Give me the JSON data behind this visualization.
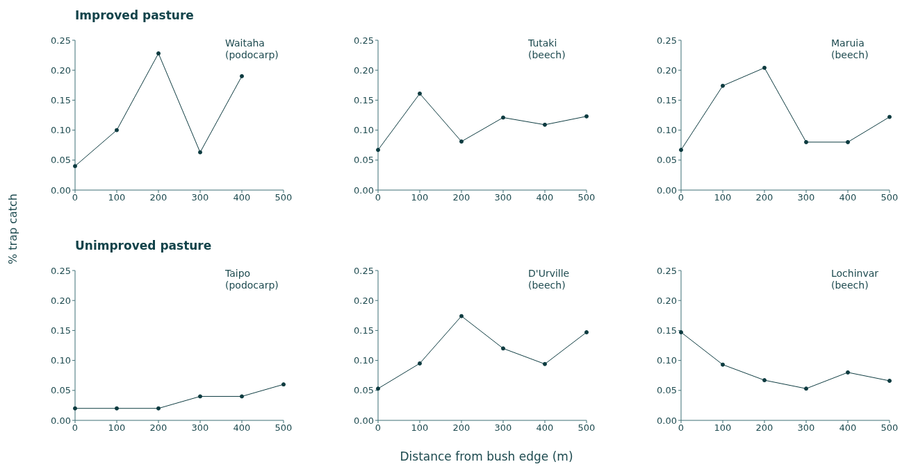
{
  "chart_data": [
    {
      "type": "line",
      "title": "Improved pasture",
      "subtitle": "Waitaha (podocarp)",
      "ylabel": "% trap catch",
      "x": [
        0,
        100,
        200,
        300,
        400
      ],
      "values": [
        0.04,
        0.1,
        0.228,
        0.063,
        0.19
      ],
      "color": "#0d3b40",
      "marker": "circle",
      "xlim": [
        0,
        500
      ],
      "xticks": [
        0,
        100,
        200,
        300,
        400,
        500
      ],
      "ylim": [
        0,
        0.25
      ],
      "yticks": [
        {
          "value": 0,
          "label": "0.00"
        },
        {
          "value": 0.05,
          "label": "0.05"
        },
        {
          "value": 0.1,
          "label": "0.10"
        },
        {
          "value": 0.15,
          "label": "0.15"
        },
        {
          "value": 0.2,
          "label": "0.20"
        },
        {
          "value": 0.25,
          "label": "0.25"
        }
      ]
    },
    {
      "type": "line",
      "subtitle": "Tutaki (beech)",
      "x": [
        0,
        100,
        200,
        300,
        400,
        500
      ],
      "values": [
        0.067,
        0.161,
        0.081,
        0.121,
        0.109,
        0.123
      ],
      "color": "#0d3b40",
      "marker": "circle",
      "xlim": [
        0,
        500
      ],
      "xticks": [
        0,
        100,
        200,
        300,
        400,
        500
      ],
      "ylim": [
        0,
        0.25
      ],
      "yticks": [
        {
          "value": 0,
          "label": "0.00"
        },
        {
          "value": 0.05,
          "label": "0.05"
        },
        {
          "value": 0.1,
          "label": "0.10"
        },
        {
          "value": 0.15,
          "label": "0.15"
        },
        {
          "value": 0.2,
          "label": "0.20"
        },
        {
          "value": 0.25,
          "label": "0.25"
        }
      ]
    },
    {
      "type": "line",
      "subtitle": "Maruia (beech)",
      "x": [
        0,
        100,
        200,
        300,
        400,
        500
      ],
      "values": [
        0.067,
        0.174,
        0.204,
        0.08,
        0.08,
        0.122
      ],
      "color": "#0d3b40",
      "marker": "circle",
      "xlim": [
        0,
        500
      ],
      "xticks": [
        0,
        100,
        200,
        300,
        400,
        500
      ],
      "ylim": [
        0,
        0.25
      ],
      "yticks": [
        {
          "value": 0,
          "label": "0.00"
        },
        {
          "value": 0.05,
          "label": "0.05"
        },
        {
          "value": 0.1,
          "label": "0.10"
        },
        {
          "value": 0.15,
          "label": "0.15"
        },
        {
          "value": 0.2,
          "label": "0.20"
        },
        {
          "value": 0.25,
          "label": "0.25"
        }
      ]
    },
    {
      "type": "line",
      "title": "Unimproved pasture",
      "subtitle": "Taipo (podocarp)",
      "x": [
        0,
        100,
        200,
        300,
        400,
        500
      ],
      "values": [
        0.02,
        0.02,
        0.02,
        0.04,
        0.04,
        0.06
      ],
      "color": "#0d3b40",
      "marker": "circle",
      "xlim": [
        0,
        500
      ],
      "xticks": [
        0,
        100,
        200,
        300,
        400,
        500
      ],
      "ylim": [
        0,
        0.25
      ],
      "yticks": [
        {
          "value": 0,
          "label": "0.00"
        },
        {
          "value": 0.05,
          "label": "0.05"
        },
        {
          "value": 0.1,
          "label": "0.10"
        },
        {
          "value": 0.15,
          "label": "0.15"
        },
        {
          "value": 0.2,
          "label": "0.20"
        },
        {
          "value": 0.25,
          "label": "0.25"
        }
      ]
    },
    {
      "type": "line",
      "subtitle": "D'Urville (beech)",
      "xlabel": "Distance from bush edge (m)",
      "x": [
        0,
        100,
        200,
        300,
        400,
        500
      ],
      "values": [
        0.053,
        0.095,
        0.174,
        0.12,
        0.094,
        0.147
      ],
      "color": "#0d3b40",
      "marker": "circle",
      "xlim": [
        0,
        500
      ],
      "xticks": [
        0,
        100,
        200,
        300,
        400,
        500
      ],
      "ylim": [
        0,
        0.25
      ],
      "yticks": [
        {
          "value": 0,
          "label": "0.00"
        },
        {
          "value": 0.05,
          "label": "0.05"
        },
        {
          "value": 0.1,
          "label": "0.10"
        },
        {
          "value": 0.15,
          "label": "0.15"
        },
        {
          "value": 0.2,
          "label": "0.20"
        },
        {
          "value": 0.25,
          "label": "0.25"
        }
      ]
    },
    {
      "type": "line",
      "subtitle": "Lochinvar (beech)",
      "x": [
        0,
        100,
        200,
        300,
        400,
        500
      ],
      "values": [
        0.147,
        0.093,
        0.067,
        0.053,
        0.08,
        0.066
      ],
      "color": "#0d3b40",
      "marker": "circle",
      "xlim": [
        0,
        500
      ],
      "xticks": [
        0,
        100,
        200,
        300,
        400,
        500
      ],
      "ylim": [
        0,
        0.25
      ],
      "yticks": [
        {
          "value": 0,
          "label": "0.00"
        },
        {
          "value": 0.05,
          "label": "0.05"
        },
        {
          "value": 0.1,
          "label": "0.10"
        },
        {
          "value": 0.15,
          "label": "0.15"
        },
        {
          "value": 0.2,
          "label": "0.20"
        },
        {
          "value": 0.25,
          "label": "0.25"
        }
      ]
    }
  ]
}
